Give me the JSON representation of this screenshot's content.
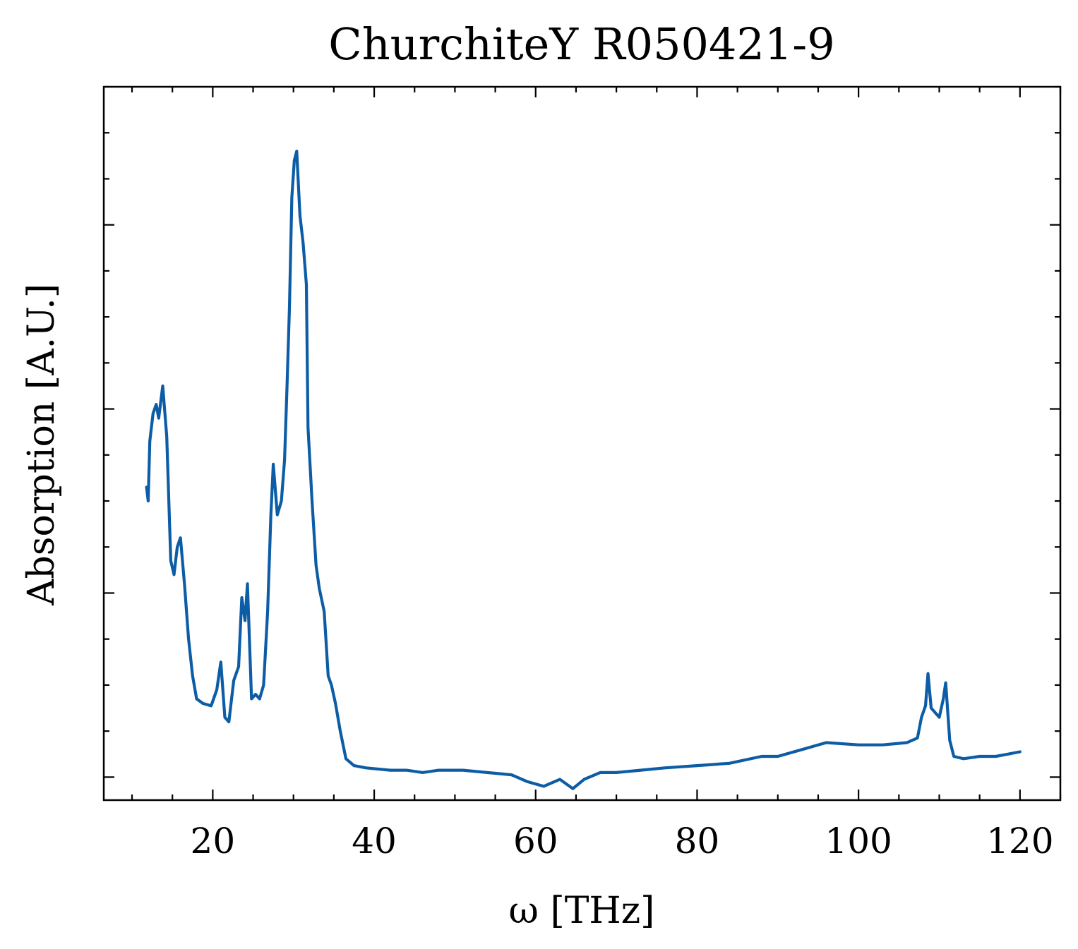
{
  "chart_data": {
    "type": "line",
    "title": "ChurchiteY R050421-9",
    "xlabel": "ω [THz]",
    "ylabel": "Absorption [A.U.]",
    "xlim": [
      6.5,
      125
    ],
    "ylim": [
      -0.05,
      1.5
    ],
    "x_ticks": [
      20,
      40,
      60,
      80,
      100,
      120
    ],
    "x_tick_labels": [
      "20",
      "40",
      "60",
      "80",
      "100",
      "120"
    ],
    "y_ticks": [
      0.0,
      0.4,
      0.8,
      1.2
    ],
    "grid": false,
    "legend": "none",
    "series": [
      {
        "color": "#0C5DA5",
        "points": [
          [
            11.8,
            0.63
          ],
          [
            12.0,
            0.6
          ],
          [
            12.2,
            0.73
          ],
          [
            12.6,
            0.79
          ],
          [
            13.0,
            0.81
          ],
          [
            13.3,
            0.78
          ],
          [
            13.8,
            0.85
          ],
          [
            14.3,
            0.74
          ],
          [
            14.8,
            0.47
          ],
          [
            15.2,
            0.44
          ],
          [
            15.6,
            0.5
          ],
          [
            16.0,
            0.52
          ],
          [
            16.5,
            0.42
          ],
          [
            17.0,
            0.3
          ],
          [
            17.5,
            0.22
          ],
          [
            18.0,
            0.17
          ],
          [
            18.8,
            0.16
          ],
          [
            19.8,
            0.155
          ],
          [
            20.5,
            0.19
          ],
          [
            21.0,
            0.25
          ],
          [
            21.5,
            0.13
          ],
          [
            22.0,
            0.12
          ],
          [
            22.6,
            0.21
          ],
          [
            23.2,
            0.24
          ],
          [
            23.6,
            0.39
          ],
          [
            24.0,
            0.34
          ],
          [
            24.3,
            0.42
          ],
          [
            24.8,
            0.17
          ],
          [
            25.3,
            0.18
          ],
          [
            25.8,
            0.17
          ],
          [
            26.3,
            0.2
          ],
          [
            26.8,
            0.36
          ],
          [
            27.2,
            0.57
          ],
          [
            27.5,
            0.68
          ],
          [
            28.0,
            0.57
          ],
          [
            28.5,
            0.6
          ],
          [
            28.9,
            0.69
          ],
          [
            29.2,
            0.85
          ],
          [
            29.5,
            1.02
          ],
          [
            29.8,
            1.26
          ],
          [
            30.1,
            1.34
          ],
          [
            30.4,
            1.36
          ],
          [
            30.8,
            1.22
          ],
          [
            31.2,
            1.16
          ],
          [
            31.6,
            1.07
          ],
          [
            31.8,
            0.76
          ],
          [
            32.3,
            0.6
          ],
          [
            32.8,
            0.46
          ],
          [
            33.2,
            0.41
          ],
          [
            33.8,
            0.36
          ],
          [
            34.3,
            0.22
          ],
          [
            34.7,
            0.2
          ],
          [
            35.2,
            0.16
          ],
          [
            35.8,
            0.1
          ],
          [
            36.5,
            0.04
          ],
          [
            37.5,
            0.025
          ],
          [
            39.0,
            0.02
          ],
          [
            42.0,
            0.015
          ],
          [
            44.0,
            0.015
          ],
          [
            46.0,
            0.01
          ],
          [
            48.0,
            0.015
          ],
          [
            51.0,
            0.015
          ],
          [
            54.0,
            0.01
          ],
          [
            57.0,
            0.005
          ],
          [
            59.0,
            -0.01
          ],
          [
            61.0,
            -0.02
          ],
          [
            63.0,
            -0.005
          ],
          [
            64.6,
            -0.025
          ],
          [
            66.0,
            -0.005
          ],
          [
            68.0,
            0.01
          ],
          [
            70.0,
            0.01
          ],
          [
            73.0,
            0.015
          ],
          [
            76.0,
            0.02
          ],
          [
            80.0,
            0.025
          ],
          [
            84.0,
            0.03
          ],
          [
            88.0,
            0.045
          ],
          [
            90.0,
            0.045
          ],
          [
            93.0,
            0.06
          ],
          [
            96.0,
            0.075
          ],
          [
            100.0,
            0.07
          ],
          [
            103.0,
            0.07
          ],
          [
            106.0,
            0.075
          ],
          [
            107.3,
            0.085
          ],
          [
            107.8,
            0.13
          ],
          [
            108.3,
            0.155
          ],
          [
            108.6,
            0.225
          ],
          [
            109.0,
            0.15
          ],
          [
            109.5,
            0.14
          ],
          [
            110.0,
            0.13
          ],
          [
            110.5,
            0.17
          ],
          [
            110.8,
            0.205
          ],
          [
            111.3,
            0.08
          ],
          [
            111.8,
            0.045
          ],
          [
            113.0,
            0.04
          ],
          [
            115.0,
            0.045
          ],
          [
            117.0,
            0.045
          ],
          [
            118.5,
            0.05
          ],
          [
            120.0,
            0.055
          ]
        ]
      }
    ]
  }
}
